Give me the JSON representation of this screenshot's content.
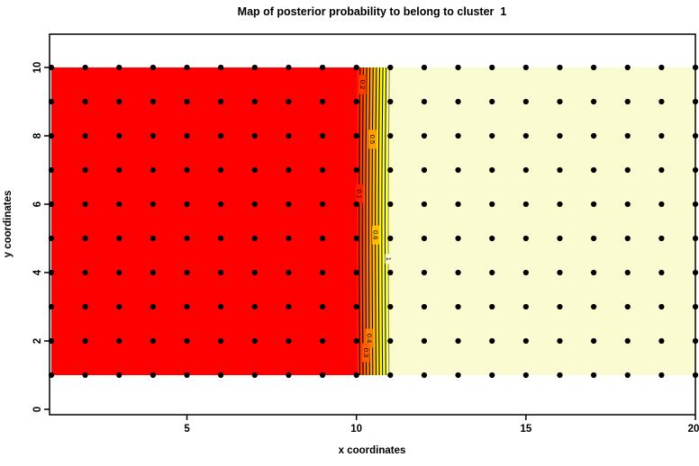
{
  "title": "Map of posterior probability to belong to cluster  1",
  "chart_data": {
    "type": "heatmap",
    "title": "Map of posterior probability to belong to cluster  1",
    "xlabel": "x coordinates",
    "ylabel": "y coordinates",
    "x_ticks": [
      "5",
      "10",
      "15",
      "20"
    ],
    "x_tick_values": [
      5,
      10,
      15,
      20
    ],
    "y_ticks": [
      "0",
      "2",
      "4",
      "6",
      "8",
      "10"
    ],
    "y_tick_values": [
      0,
      2,
      4,
      6,
      8,
      10
    ],
    "xlim": [
      0.95,
      20
    ],
    "ylim": [
      -0.15,
      11.1
    ],
    "grid_points": {
      "x_min": 1,
      "x_max": 20,
      "y_min": 1,
      "y_max": 10,
      "step": 1,
      "marker": "black-dot"
    },
    "field": {
      "quantity": "posterior probability of cluster 1",
      "low_region": {
        "x_range": [
          1,
          10
        ],
        "y_range": [
          1,
          10
        ],
        "value": 0,
        "color": "#FF0000"
      },
      "transition": {
        "x_range": [
          10,
          11
        ],
        "band_colors": [
          "#FF2000",
          "#FF4000",
          "#FF6000",
          "#FF8000",
          "#FFA000",
          "#FFBF00",
          "#FFDF00",
          "#FFFF00",
          "#FFFF2A",
          "#FFFF80"
        ]
      },
      "high_region": {
        "x_range": [
          11,
          20
        ],
        "y_range": [
          1,
          10
        ],
        "value": 1,
        "color": "#FBFBD2"
      }
    },
    "contours": {
      "levels": [
        0.1,
        0.2,
        0.3,
        0.4,
        0.5,
        0.6,
        0.7,
        0.8,
        0.9,
        1.0
      ],
      "line_color": "#000000",
      "level_one_color": "#808080",
      "labels": [
        {
          "text": "0.2",
          "level": 0.2,
          "y": 9.5
        },
        {
          "text": "0.5",
          "level": 0.5,
          "y": 7.9
        },
        {
          "text": "0.1",
          "level": 0.1,
          "y": 6.3
        },
        {
          "text": "0.6",
          "level": 0.6,
          "y": 5.1
        },
        {
          "text": "1",
          "level": 1.0,
          "y": 4.4
        },
        {
          "text": "0.4",
          "level": 0.4,
          "y": 2.08
        },
        {
          "text": "0.3",
          "level": 0.3,
          "y": 1.66
        }
      ]
    }
  }
}
